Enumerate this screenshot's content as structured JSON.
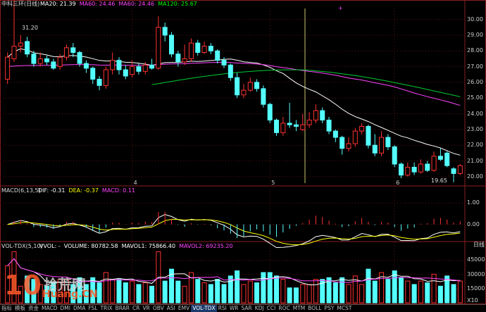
{
  "main": {
    "title": "中科三环(日线)",
    "ma_items": [
      {
        "label": "MA20: 21.39",
        "color": "#ffffff"
      },
      {
        "label": "MA60: 24.46",
        "color": "#ff44ff"
      },
      {
        "label": "MA60: 24.46",
        "color": "#ff44ff"
      },
      {
        "label": "MA120: 25.67",
        "color": "#00ff00"
      }
    ],
    "price_ticks": [
      "30.00",
      "29.00",
      "28.00",
      "27.00",
      "26.00",
      "25.00",
      "24.00",
      "23.00",
      "22.00",
      "21.00",
      "20.00"
    ],
    "high_marker": "31.20",
    "low_marker": "19.65"
  },
  "macd": {
    "title": "MACD(6,13,5)",
    "items": [
      {
        "label": "DIF: -0.31",
        "color": "#ffffff"
      },
      {
        "label": "DEA: -0.37",
        "color": "#ffff00"
      },
      {
        "label": "MACD: 0.11",
        "color": "#ff44ff"
      }
    ],
    "ticks": [
      "1.00",
      "0.00"
    ]
  },
  "volume": {
    "title": "VOL-TDX(5,10)",
    "items": [
      {
        "label": "VVOL: -",
        "color": "#ffffff"
      },
      {
        "label": "VOLUME: 80782.58",
        "color": "#ffffff"
      },
      {
        "label": "MAVOL1: 75866.40",
        "color": "#ffffff"
      },
      {
        "label": "MAVOL2: 69235.20",
        "color": "#ff44ff"
      }
    ],
    "ticks": [
      "45000",
      "30000",
      "15000"
    ],
    "unit": "X10",
    "period_label": "日线"
  },
  "axis_months": [
    "4",
    "5",
    "6"
  ],
  "tabs": [
    "指标",
    "模板",
    "资金",
    "MACD",
    "DMI",
    "DMA",
    "FSL",
    "TRIX",
    "BRAR",
    "CR",
    "VR",
    "OBV",
    "ASI",
    "EMV",
    "VOL-TDX",
    "RSI",
    "WR",
    "SAR",
    "KDJ",
    "CCI",
    "ROC",
    "MTM",
    "BOLL",
    "PSY",
    "MCST"
  ],
  "active_tab": "VOL-TDX",
  "watermark": {
    "big": "10",
    "text1": "拾荒网",
    "text2": "Huang.CN"
  },
  "chart_data": {
    "type": "candlestick",
    "title": "中科三环(日线)",
    "ylim": [
      19.5,
      30.7
    ],
    "ma20_last": 21.39,
    "ma60_last": 24.46,
    "ma120_last": 25.67,
    "high": 31.2,
    "low": 19.65,
    "candles": [
      {
        "o": 26.2,
        "c": 27.6,
        "h": 27.9,
        "l": 25.9
      },
      {
        "o": 27.5,
        "c": 28.3,
        "h": 31.2,
        "l": 27.3
      },
      {
        "o": 28.3,
        "c": 28.5,
        "h": 29.0,
        "l": 27.9
      },
      {
        "o": 28.6,
        "c": 27.8,
        "h": 28.9,
        "l": 27.6
      },
      {
        "o": 27.8,
        "c": 27.2,
        "h": 28.0,
        "l": 27.0
      },
      {
        "o": 27.2,
        "c": 27.5,
        "h": 27.9,
        "l": 27.0
      },
      {
        "o": 27.5,
        "c": 27.3,
        "h": 27.7,
        "l": 27.1
      },
      {
        "o": 27.3,
        "c": 26.9,
        "h": 27.5,
        "l": 26.8
      },
      {
        "o": 27.0,
        "c": 27.6,
        "h": 27.8,
        "l": 26.8
      },
      {
        "o": 27.6,
        "c": 28.2,
        "h": 28.4,
        "l": 27.4
      },
      {
        "o": 28.2,
        "c": 27.9,
        "h": 28.5,
        "l": 27.6
      },
      {
        "o": 27.9,
        "c": 27.2,
        "h": 28.0,
        "l": 27.0
      },
      {
        "o": 27.2,
        "c": 26.9,
        "h": 27.4,
        "l": 26.6
      },
      {
        "o": 26.9,
        "c": 26.2,
        "h": 27.0,
        "l": 25.9
      },
      {
        "o": 26.2,
        "c": 25.8,
        "h": 26.4,
        "l": 25.5
      },
      {
        "o": 25.8,
        "c": 26.8,
        "h": 27.0,
        "l": 25.6
      },
      {
        "o": 26.8,
        "c": 27.4,
        "h": 27.9,
        "l": 26.5
      },
      {
        "o": 27.4,
        "c": 26.8,
        "h": 27.6,
        "l": 26.5
      },
      {
        "o": 26.8,
        "c": 26.4,
        "h": 27.1,
        "l": 26.2
      },
      {
        "o": 26.5,
        "c": 27.0,
        "h": 27.4,
        "l": 26.3
      },
      {
        "o": 27.0,
        "c": 26.7,
        "h": 27.2,
        "l": 26.5
      },
      {
        "o": 26.7,
        "c": 27.1,
        "h": 27.3,
        "l": 26.5
      },
      {
        "o": 27.1,
        "c": 26.9,
        "h": 27.5,
        "l": 26.8
      },
      {
        "o": 26.9,
        "c": 29.5,
        "h": 30.2,
        "l": 26.8
      },
      {
        "o": 29.5,
        "c": 29.0,
        "h": 29.8,
        "l": 28.6
      },
      {
        "o": 29.0,
        "c": 27.8,
        "h": 29.2,
        "l": 27.6
      },
      {
        "o": 27.8,
        "c": 27.3,
        "h": 28.0,
        "l": 27.0
      },
      {
        "o": 27.3,
        "c": 27.5,
        "h": 28.4,
        "l": 27.1
      },
      {
        "o": 27.5,
        "c": 28.5,
        "h": 28.8,
        "l": 27.3
      },
      {
        "o": 28.5,
        "c": 27.9,
        "h": 28.7,
        "l": 27.7
      },
      {
        "o": 27.9,
        "c": 28.3,
        "h": 28.6,
        "l": 27.8
      },
      {
        "o": 28.3,
        "c": 28.0,
        "h": 28.5,
        "l": 27.8
      },
      {
        "o": 28.0,
        "c": 27.4,
        "h": 28.1,
        "l": 27.2
      },
      {
        "o": 27.4,
        "c": 27.1,
        "h": 27.6,
        "l": 26.9
      },
      {
        "o": 27.1,
        "c": 26.3,
        "h": 27.2,
        "l": 26.1
      },
      {
        "o": 26.3,
        "c": 25.2,
        "h": 26.6,
        "l": 25.0
      },
      {
        "o": 25.2,
        "c": 25.5,
        "h": 25.9,
        "l": 25.0
      },
      {
        "o": 25.5,
        "c": 26.0,
        "h": 26.3,
        "l": 25.4
      },
      {
        "o": 26.0,
        "c": 25.6,
        "h": 26.2,
        "l": 25.4
      },
      {
        "o": 25.6,
        "c": 24.6,
        "h": 25.8,
        "l": 24.4
      },
      {
        "o": 24.6,
        "c": 23.6,
        "h": 24.7,
        "l": 23.4
      },
      {
        "o": 23.6,
        "c": 22.8,
        "h": 23.7,
        "l": 22.6
      },
      {
        "o": 22.8,
        "c": 23.4,
        "h": 23.8,
        "l": 22.6
      },
      {
        "o": 23.4,
        "c": 23.3,
        "h": 24.7,
        "l": 23.1
      },
      {
        "o": 23.3,
        "c": 23.2,
        "h": 23.6,
        "l": 22.9
      },
      {
        "o": 23.0,
        "c": 23.3,
        "h": 24.0,
        "l": 22.9
      },
      {
        "o": 23.3,
        "c": 23.6,
        "h": 24.1,
        "l": 23.1
      },
      {
        "o": 23.6,
        "c": 24.2,
        "h": 24.6,
        "l": 23.4
      },
      {
        "o": 24.2,
        "c": 23.6,
        "h": 24.4,
        "l": 23.4
      },
      {
        "o": 23.6,
        "c": 22.9,
        "h": 23.8,
        "l": 22.7
      },
      {
        "o": 22.9,
        "c": 22.5,
        "h": 23.0,
        "l": 22.2
      },
      {
        "o": 22.5,
        "c": 21.8,
        "h": 22.6,
        "l": 21.4
      },
      {
        "o": 21.8,
        "c": 22.1,
        "h": 22.5,
        "l": 21.6
      },
      {
        "o": 22.1,
        "c": 22.9,
        "h": 23.1,
        "l": 21.9
      },
      {
        "o": 22.9,
        "c": 23.2,
        "h": 23.4,
        "l": 22.7
      },
      {
        "o": 23.2,
        "c": 22.0,
        "h": 23.3,
        "l": 21.8
      },
      {
        "o": 22.0,
        "c": 21.5,
        "h": 22.7,
        "l": 21.3
      },
      {
        "o": 21.5,
        "c": 22.5,
        "h": 22.9,
        "l": 21.3
      },
      {
        "o": 22.5,
        "c": 21.9,
        "h": 22.7,
        "l": 21.7
      },
      {
        "o": 21.9,
        "c": 20.8,
        "h": 22.0,
        "l": 20.6
      },
      {
        "o": 20.8,
        "c": 20.1,
        "h": 20.9,
        "l": 19.9
      },
      {
        "o": 20.1,
        "c": 20.6,
        "h": 20.9,
        "l": 20.0
      },
      {
        "o": 20.6,
        "c": 20.3,
        "h": 20.9,
        "l": 20.1
      },
      {
        "o": 20.3,
        "c": 20.8,
        "h": 21.1,
        "l": 20.2
      },
      {
        "o": 20.8,
        "c": 20.4,
        "h": 21.0,
        "l": 20.3
      },
      {
        "o": 20.4,
        "c": 21.3,
        "h": 21.6,
        "l": 20.3
      },
      {
        "o": 21.3,
        "c": 21.1,
        "h": 21.8,
        "l": 21.0
      },
      {
        "o": 21.5,
        "c": 20.7,
        "h": 21.6,
        "l": 20.6
      },
      {
        "o": 20.5,
        "c": 20.2,
        "h": 20.6,
        "l": 19.65
      },
      {
        "o": 20.2,
        "c": 20.7,
        "h": 20.8,
        "l": 20.1
      }
    ]
  }
}
